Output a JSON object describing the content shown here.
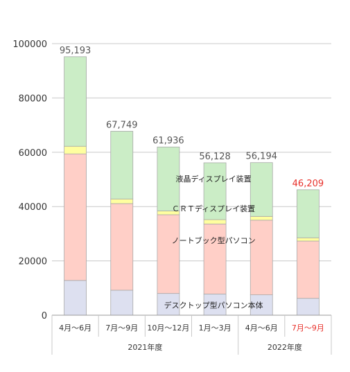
{
  "chart_data": {
    "type": "bar",
    "stacked": true,
    "y_axis": {
      "min": 0,
      "max": 100000,
      "ticks": [
        0,
        20000,
        40000,
        60000,
        80000,
        100000
      ],
      "tick_labels": [
        "0",
        "20000",
        "40000",
        "60000",
        "80000",
        "100000"
      ]
    },
    "categories": [
      "4月～6月",
      "7月～9月",
      "10月～12月",
      "1月～3月",
      "4月～6月",
      "7月～9月"
    ],
    "year_groups": [
      {
        "label": "2021年度",
        "span": [
          0,
          3
        ]
      },
      {
        "label": "2022年度",
        "span": [
          4,
          5
        ]
      }
    ],
    "totals": [
      "95,193",
      "67,749",
      "61,936",
      "56,128",
      "56,194",
      "46,209"
    ],
    "highlight_index": 5,
    "series": [
      {
        "name": "デスクトップ型パソコン本体",
        "color": "#dde0f0",
        "values": [
          12800,
          9200,
          8000,
          7800,
          7500,
          6200
        ]
      },
      {
        "name": "ノートブック型パソコン",
        "color": "#ffcfc7",
        "values": [
          46600,
          31900,
          29000,
          25800,
          27500,
          21100
        ]
      },
      {
        "name": "ＣＲＴディスプレイ装置",
        "color": "#ffff9f",
        "values": [
          2800,
          1700,
          1400,
          1600,
          1400,
          1200
        ]
      },
      {
        "name": "液晶ディスプレイ装置",
        "color": "#cbedc6",
        "values": [
          32993,
          24949,
          23536,
          20928,
          19794,
          17709
        ]
      }
    ],
    "colors": {
      "bar_outline": "#a9a9a9",
      "grid": "#c8c8c8",
      "axis_text": "#333333",
      "total_text": "#555555",
      "highlight": "#e8302a"
    },
    "grid": true
  }
}
